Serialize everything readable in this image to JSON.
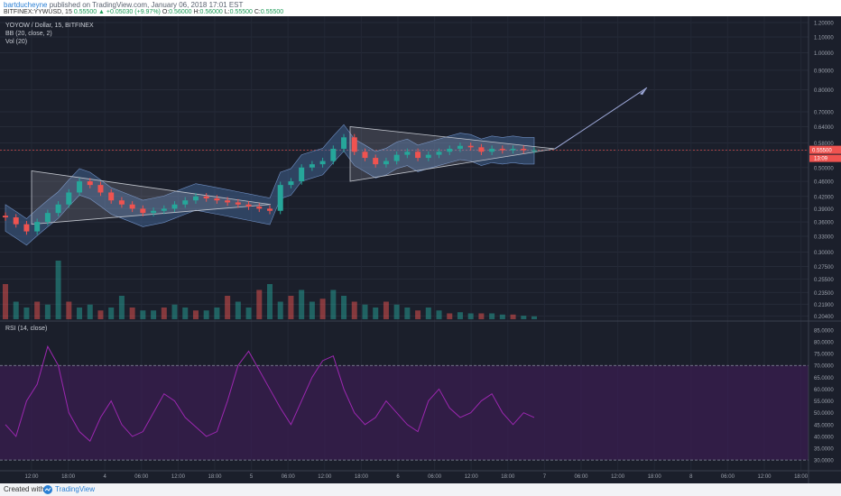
{
  "header": {
    "user": "bartducheyne",
    "published": "published on TradingView.com, January 06, 2018 17:01 EST"
  },
  "ohlc_bar": {
    "symbol": "BITFINEX:YYWUSD, 15",
    "close_change": "0.55500 ▲ +0.05030 (+9.97%)",
    "o": "O:",
    "o_val": "0.56000",
    "h": "H:",
    "h_val": "0.56000",
    "l": "L:",
    "l_val": "0.55500",
    "c": "C:",
    "c_val": "0.55500"
  },
  "legend": {
    "title": "YOYOW / Dollar, 15, BITFINEX",
    "bb": "BB (20, close, 2)",
    "vol": "Vol (20)",
    "rsi": "RSI (14, close)"
  },
  "footer": {
    "created": "Created with",
    "brand": "TradingView"
  },
  "colors": {
    "background": "#1b1f2b",
    "up": "#26a69a",
    "down": "#ef5350",
    "bb_fill": "#4a6fa5",
    "rsi_line": "#9c27b0",
    "rsi_band": "#3b1c53",
    "triangle": "#c0c4cc",
    "arrow": "#9da8d8",
    "price_tag": "#ef5350"
  },
  "chart_data": {
    "type": "candlestick",
    "price_axis": {
      "ticks": [
        "1.20000",
        "1.10000",
        "1.00000",
        "0.90000",
        "0.80000",
        "0.70000",
        "0.64000",
        "0.58000",
        "0.55500",
        "0.50000",
        "0.46000",
        "0.42000",
        "0.39000",
        "0.36000",
        "0.33000",
        "0.30000",
        "0.27500",
        "0.25500",
        "0.23500",
        "0.21900",
        "0.20400"
      ],
      "tick_values": [
        1.2,
        1.1,
        1.0,
        0.9,
        0.8,
        0.7,
        0.64,
        0.58,
        0.555,
        0.5,
        0.46,
        0.42,
        0.39,
        0.36,
        0.33,
        0.3,
        0.275,
        0.255,
        0.235,
        0.219,
        0.204
      ],
      "scale": "log"
    },
    "last_price": "0.55500",
    "countdown": "13:09",
    "time_axis": {
      "ticks": [
        "12:00",
        "18:00",
        "4",
        "06:00",
        "12:00",
        "18:00",
        "5",
        "06:00",
        "12:00",
        "18:00",
        "6",
        "06:00",
        "12:00",
        "18:00",
        "7",
        "06:00",
        "12:00",
        "18:00",
        "8",
        "06:00",
        "12:00",
        "18:00"
      ]
    },
    "price_path": [
      0.37,
      0.355,
      0.34,
      0.36,
      0.38,
      0.4,
      0.43,
      0.46,
      0.45,
      0.43,
      0.41,
      0.4,
      0.39,
      0.38,
      0.385,
      0.39,
      0.4,
      0.41,
      0.42,
      0.415,
      0.41,
      0.405,
      0.4,
      0.395,
      0.39,
      0.385,
      0.45,
      0.46,
      0.5,
      0.51,
      0.52,
      0.56,
      0.6,
      0.55,
      0.53,
      0.51,
      0.52,
      0.54,
      0.55,
      0.53,
      0.54,
      0.55,
      0.56,
      0.57,
      0.565,
      0.55,
      0.56,
      0.555,
      0.56,
      0.555,
      0.555
    ],
    "volume_ticks": [
      0.6,
      0.3,
      0.2,
      0.3,
      0.25,
      1.0,
      0.3,
      0.2,
      0.25,
      0.15,
      0.2,
      0.4,
      0.2,
      0.15,
      0.15,
      0.2,
      0.25,
      0.2,
      0.15,
      0.15,
      0.2,
      0.4,
      0.3,
      0.2,
      0.5,
      0.6,
      0.3,
      0.4,
      0.5,
      0.3,
      0.35,
      0.5,
      0.4,
      0.3,
      0.25,
      0.2,
      0.3,
      0.25,
      0.2,
      0.15,
      0.2,
      0.15,
      0.1,
      0.12,
      0.1,
      0.1,
      0.1,
      0.08,
      0.08,
      0.06,
      0.05
    ],
    "rsi": {
      "axis_ticks": [
        "85.0000",
        "80.0000",
        "75.0000",
        "70.0000",
        "65.0000",
        "60.0000",
        "55.0000",
        "50.0000",
        "45.0000",
        "40.0000",
        "35.0000",
        "30.0000"
      ],
      "tick_values": [
        85,
        80,
        75,
        70,
        65,
        60,
        55,
        50,
        45,
        40,
        35,
        30
      ],
      "upper": 70,
      "lower": 30,
      "values": [
        45,
        40,
        55,
        62,
        78,
        70,
        50,
        42,
        38,
        48,
        55,
        45,
        40,
        42,
        50,
        58,
        55,
        48,
        44,
        40,
        42,
        55,
        70,
        76,
        68,
        60,
        52,
        45,
        55,
        65,
        72,
        74,
        60,
        50,
        45,
        48,
        55,
        50,
        45,
        42,
        55,
        60,
        52,
        48,
        50,
        55,
        58,
        50,
        45,
        50,
        48
      ]
    }
  }
}
